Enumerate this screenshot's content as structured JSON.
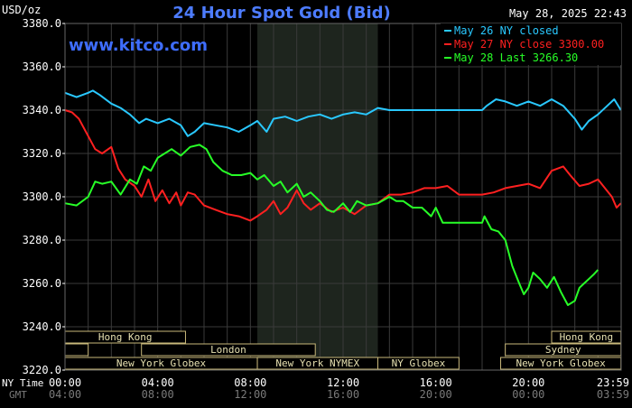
{
  "title": "24 Hour Spot Gold (Bid)",
  "unit": "USD/oz",
  "timestamp": "May 28, 2025 22:43",
  "watermark": "www.kitco.com",
  "colors": {
    "background": "#000000",
    "title": "#4d7cff",
    "watermark": "#3e6dff",
    "axis_text": "#ffffff",
    "grid": "#3a3a3a",
    "ny_shade": "#1e251e",
    "session_border": "#c8b87a",
    "session_text": "#e6e0b0",
    "gmt_text": "#7a7a7a"
  },
  "x_axis": {
    "row1_label": "NY Time",
    "row2_label": "GMT",
    "ticks_ny": [
      "00:00",
      "04:00",
      "08:00",
      "12:00",
      "16:00",
      "20:00",
      "23:59"
    ],
    "ticks_gmt": [
      "04:00",
      "08:00",
      "12:00",
      "16:00",
      "20:00",
      "00:00",
      "03:59"
    ]
  },
  "sessions": [
    {
      "label": "Hong Kong",
      "start_hour": 0,
      "end_hour": 5.2,
      "row": 0
    },
    {
      "label": "Hong Kong",
      "start_hour": 21,
      "end_hour": 23.99,
      "row": 0
    },
    {
      "label": "",
      "start_hour": 0,
      "end_hour": 1,
      "row": 1
    },
    {
      "label": "London",
      "start_hour": 3.3,
      "end_hour": 10.8,
      "row": 1
    },
    {
      "label": "Sydney",
      "start_hour": 19,
      "end_hour": 23.99,
      "row": 1
    },
    {
      "label": "",
      "start_hour": 0,
      "end_hour": 3.3,
      "row": 2
    },
    {
      "label": "",
      "start_hour": 18.9,
      "end_hour": 19,
      "row": 2
    },
    {
      "label": "New York Globex",
      "start_hour": 0,
      "end_hour": 8.3,
      "row": 3
    },
    {
      "label": "New York NYMEX",
      "start_hour": 8.3,
      "end_hour": 13.5,
      "row": 3
    },
    {
      "label": "NY Globex",
      "start_hour": 13.5,
      "end_hour": 17,
      "row": 3
    },
    {
      "label": "New York Globex",
      "start_hour": 18.8,
      "end_hour": 23.99,
      "row": 3
    }
  ],
  "chart_data": {
    "type": "line",
    "title": "24 Hour Spot Gold (Bid)",
    "ylabel": "USD/oz",
    "xlabel": "NY Time",
    "xlim": [
      0,
      24
    ],
    "ylim": [
      3220,
      3380
    ],
    "y_ticks": [
      "3380.0",
      "3360.0",
      "3340.0",
      "3320.0",
      "3300.0",
      "3280.0",
      "3260.0",
      "3240.0",
      "3220.0"
    ],
    "grid": true,
    "legend_position": "top-right",
    "ny_session_shade": [
      8.3,
      13.5
    ],
    "series": [
      {
        "name": "May 26 NY closed",
        "color": "#29c8ff",
        "x": [
          0,
          0.5,
          1,
          1.2,
          1.5,
          2,
          2.4,
          2.8,
          3.2,
          3.5,
          4,
          4.5,
          5,
          5.3,
          5.6,
          6,
          6.5,
          7,
          7.5,
          8,
          8.3,
          8.7,
          9,
          9.5,
          10,
          10.5,
          11,
          11.5,
          12,
          12.5,
          13,
          13.5,
          14,
          15,
          16,
          17,
          18,
          18.2,
          18.6,
          19,
          19.5,
          20,
          20.5,
          21,
          21.5,
          22,
          22.3,
          22.6,
          23,
          23.4,
          23.7,
          23.99
        ],
        "values": [
          3348,
          3346,
          3348,
          3349,
          3347,
          3343,
          3341,
          3338,
          3334,
          3336,
          3334,
          3336,
          3333,
          3328,
          3330,
          3334,
          3333,
          3332,
          3330,
          3333,
          3335,
          3330,
          3336,
          3337,
          3335,
          3337,
          3338,
          3336,
          3338,
          3339,
          3338,
          3341,
          3340,
          3340,
          3340,
          3340,
          3340,
          3342,
          3345,
          3344,
          3342,
          3344,
          3342,
          3345,
          3342,
          3336,
          3331,
          3335,
          3338,
          3342,
          3345,
          3340
        ]
      },
      {
        "name": "May 27 NY close 3300.00",
        "color": "#ff2020",
        "x": [
          0,
          0.3,
          0.6,
          1,
          1.3,
          1.6,
          2,
          2.3,
          2.6,
          3,
          3.3,
          3.6,
          3.9,
          4.2,
          4.5,
          4.8,
          5,
          5.3,
          5.6,
          6,
          6.5,
          7,
          7.5,
          8,
          8.3,
          8.7,
          9,
          9.3,
          9.6,
          10,
          10.3,
          10.6,
          11,
          11.5,
          12,
          12.5,
          13,
          13.5,
          14,
          14.5,
          15,
          15.5,
          16,
          16.5,
          17,
          18,
          18.5,
          19,
          19.5,
          20,
          20.5,
          21,
          21.5,
          21.8,
          22.2,
          22.6,
          23,
          23.3,
          23.6,
          23.8,
          23.99
        ],
        "values": [
          3340,
          3339,
          3336,
          3328,
          3322,
          3320,
          3323,
          3313,
          3308,
          3305,
          3300,
          3308,
          3298,
          3303,
          3297,
          3302,
          3296,
          3302,
          3301,
          3296,
          3294,
          3292,
          3291,
          3289,
          3291,
          3294,
          3298,
          3292,
          3295,
          3303,
          3297,
          3294,
          3297,
          3293,
          3295,
          3292,
          3296,
          3297,
          3301,
          3301,
          3302,
          3304,
          3304,
          3305,
          3301,
          3301,
          3302,
          3304,
          3305,
          3306,
          3304,
          3312,
          3314,
          3310,
          3305,
          3306,
          3308,
          3304,
          3300,
          3295,
          3297
        ]
      },
      {
        "name": "May 28 Last 3266.30",
        "color": "#27ff27",
        "x": [
          0,
          0.5,
          1,
          1.3,
          1.6,
          2,
          2.4,
          2.8,
          3.1,
          3.4,
          3.7,
          4,
          4.3,
          4.6,
          5,
          5.4,
          5.8,
          6.1,
          6.4,
          6.8,
          7.2,
          7.6,
          8,
          8.3,
          8.6,
          9,
          9.3,
          9.6,
          10,
          10.3,
          10.6,
          11,
          11.3,
          11.6,
          12,
          12.3,
          12.6,
          13,
          13.5,
          14,
          14.3,
          14.6,
          15,
          15.4,
          15.8,
          16,
          16.3,
          16.6,
          17,
          18,
          18.1,
          18.4,
          18.7,
          19,
          19.3,
          19.6,
          19.8,
          20,
          20.2,
          20.5,
          20.8,
          21.1,
          21.4,
          21.7,
          22,
          22.2,
          22.4,
          22.6,
          22.8,
          23
        ],
        "values": [
          3297,
          3296,
          3300,
          3307,
          3306,
          3307,
          3301,
          3308,
          3306,
          3314,
          3312,
          3318,
          3320,
          3322,
          3319,
          3323,
          3324,
          3322,
          3316,
          3312,
          3310,
          3310,
          3311,
          3308,
          3310,
          3305,
          3307,
          3302,
          3306,
          3300,
          3302,
          3298,
          3294,
          3293,
          3297,
          3293,
          3298,
          3296,
          3297,
          3300,
          3298,
          3298,
          3295,
          3295,
          3291,
          3295,
          3288,
          3288,
          3288,
          3288,
          3291,
          3285,
          3284,
          3280,
          3268,
          3260,
          3255,
          3258,
          3265,
          3262,
          3258,
          3263,
          3256,
          3250,
          3252,
          3258,
          3260,
          3262,
          3264,
          3266.3
        ]
      }
    ]
  }
}
